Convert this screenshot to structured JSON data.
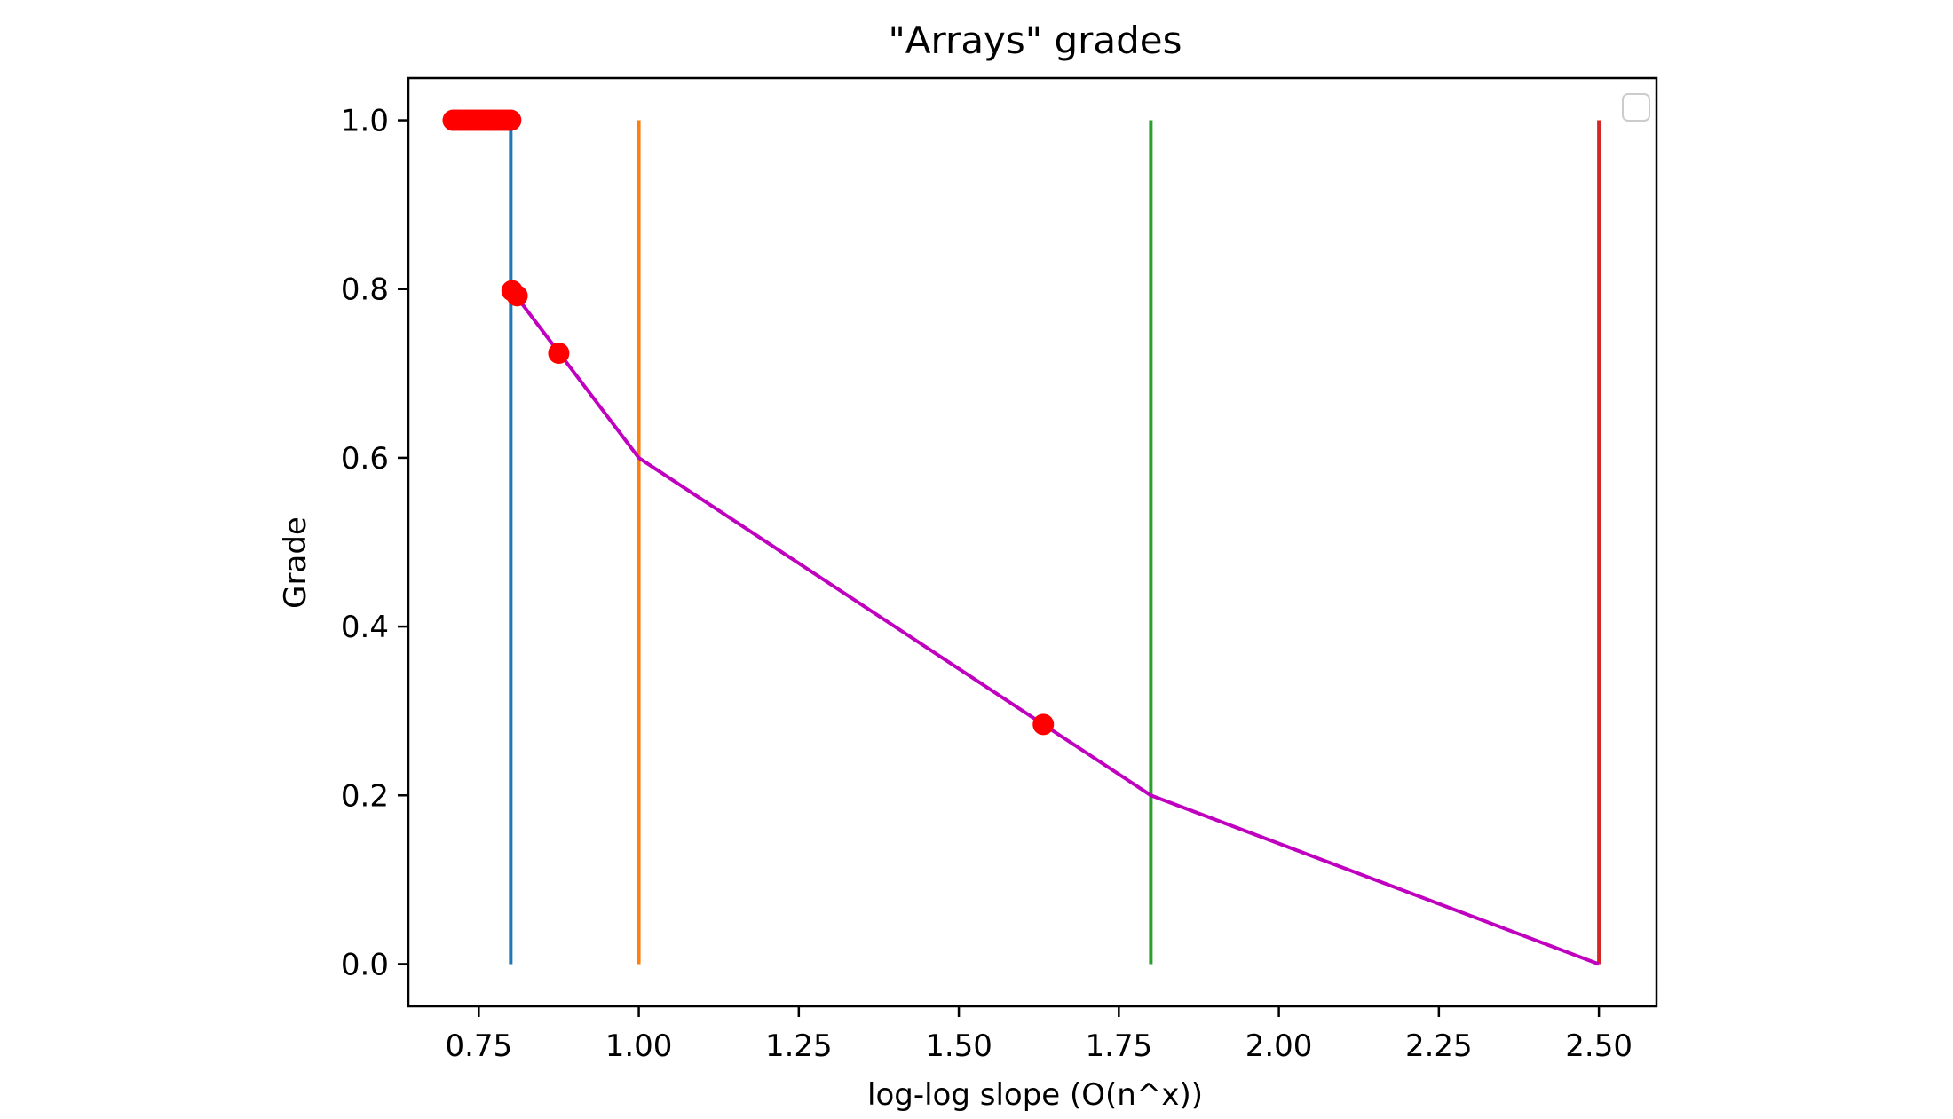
{
  "chart_data": {
    "type": "line",
    "title": "\"Arrays\" grades",
    "xlabel": "log-log slope (O(n^x))",
    "ylabel": "Grade",
    "xlim": [
      0.64,
      2.59
    ],
    "ylim": [
      -0.05,
      1.05
    ],
    "xticks": [
      0.75,
      1.0,
      1.25,
      1.5,
      1.75,
      2.0,
      2.25,
      2.5
    ],
    "xtick_labels": [
      "0.75",
      "1.00",
      "1.25",
      "1.50",
      "1.75",
      "2.00",
      "2.25",
      "2.50"
    ],
    "yticks": [
      0.0,
      0.2,
      0.4,
      0.6,
      0.8,
      1.0
    ],
    "ytick_labels": [
      "0.0",
      "0.2",
      "0.4",
      "0.6",
      "0.8",
      "1.0"
    ],
    "grid": false,
    "legend": {
      "placement": "top-right",
      "entries": []
    },
    "vertical_lines": [
      {
        "x": 0.8,
        "ymin": 0,
        "ymax": 1,
        "color": "#1f77b4"
      },
      {
        "x": 1.0,
        "ymin": 0,
        "ymax": 1,
        "color": "#ff7f0e"
      },
      {
        "x": 1.8,
        "ymin": 0,
        "ymax": 1,
        "color": "#2ca02c"
      },
      {
        "x": 2.5,
        "ymin": 0,
        "ymax": 1,
        "color": "#d62728"
      }
    ],
    "series": [
      {
        "type": "line",
        "color": "#bf00bf",
        "x": [
          0.8,
          1.0,
          1.8,
          2.5
        ],
        "y": [
          0.8,
          0.6,
          0.2,
          0.0
        ]
      },
      {
        "type": "scatter",
        "color": "#ff0000",
        "x": [
          0.71,
          0.715,
          0.72,
          0.725,
          0.73,
          0.735,
          0.74,
          0.745,
          0.75,
          0.755,
          0.76,
          0.765,
          0.77,
          0.775,
          0.78,
          0.785,
          0.79,
          0.795,
          0.8,
          0.802,
          0.81,
          0.875,
          1.632
        ],
        "y": [
          1.0,
          1.0,
          1.0,
          1.0,
          1.0,
          1.0,
          1.0,
          1.0,
          1.0,
          1.0,
          1.0,
          1.0,
          1.0,
          1.0,
          1.0,
          1.0,
          1.0,
          1.0,
          1.0,
          0.798,
          0.792,
          0.724,
          0.284
        ]
      }
    ]
  }
}
